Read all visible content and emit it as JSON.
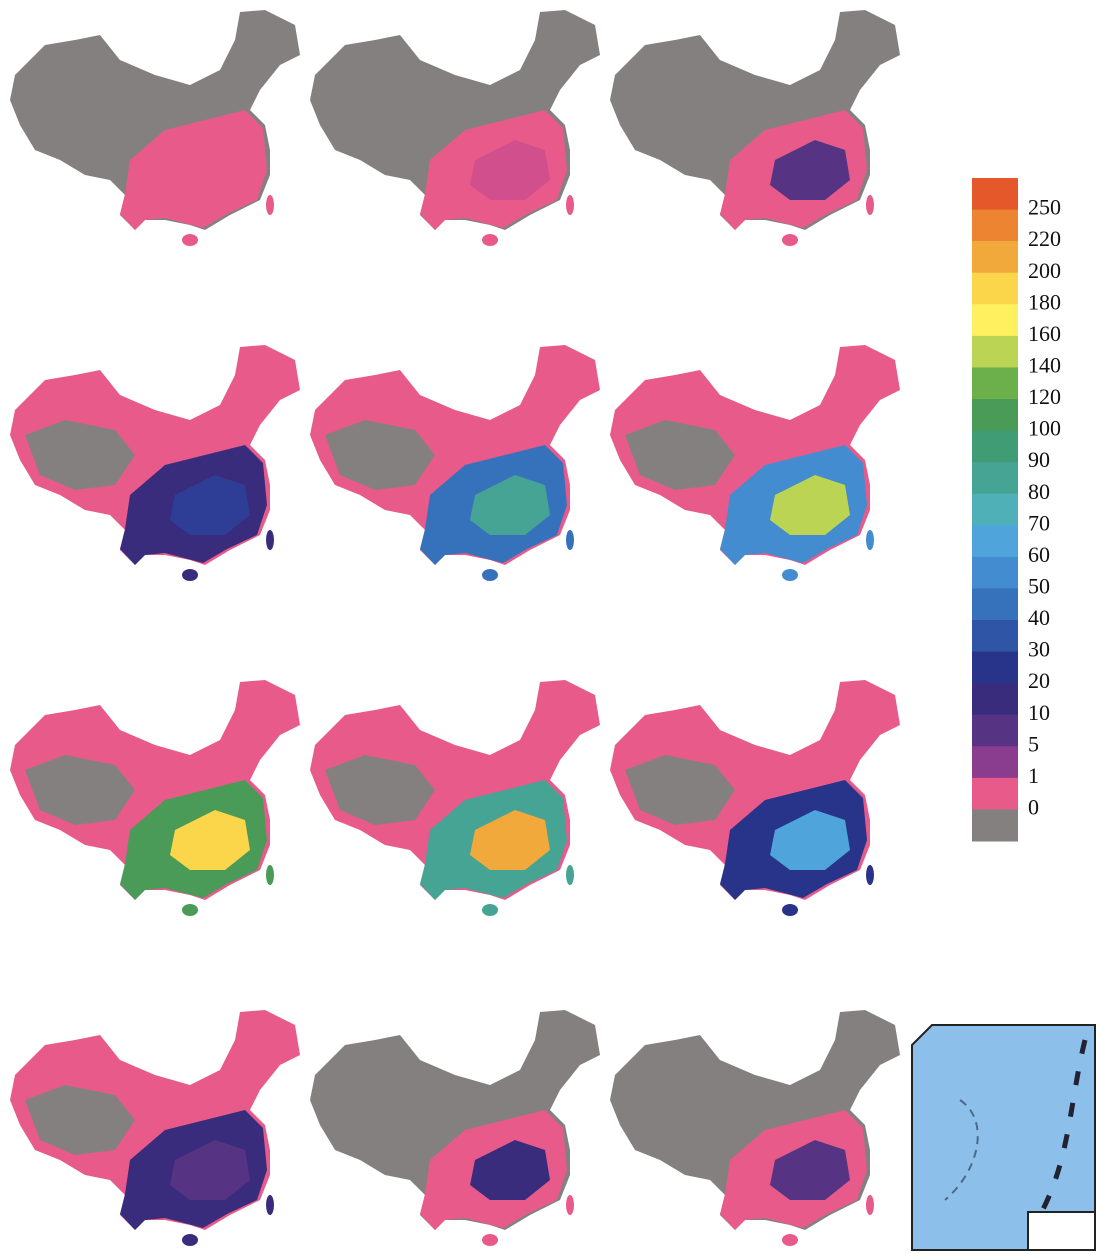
{
  "legend": {
    "labels": [
      250,
      220,
      200,
      180,
      160,
      140,
      120,
      100,
      90,
      80,
      70,
      60,
      50,
      40,
      30,
      20,
      10,
      5,
      1,
      0
    ],
    "colors": [
      "#e4582a",
      "#ec8432",
      "#f2a93c",
      "#fbd64a",
      "#fff060",
      "#bcd454",
      "#6cb04c",
      "#4a9a58",
      "#3f9c74",
      "#45a494",
      "#4fb0b8",
      "#4fa4dc",
      "#438cd0",
      "#3672bc",
      "#2e55a6",
      "#27348a",
      "#3a2c7c",
      "#573384",
      "#8a3c8e",
      "#e85a8a",
      "#858080"
    ]
  }
}
